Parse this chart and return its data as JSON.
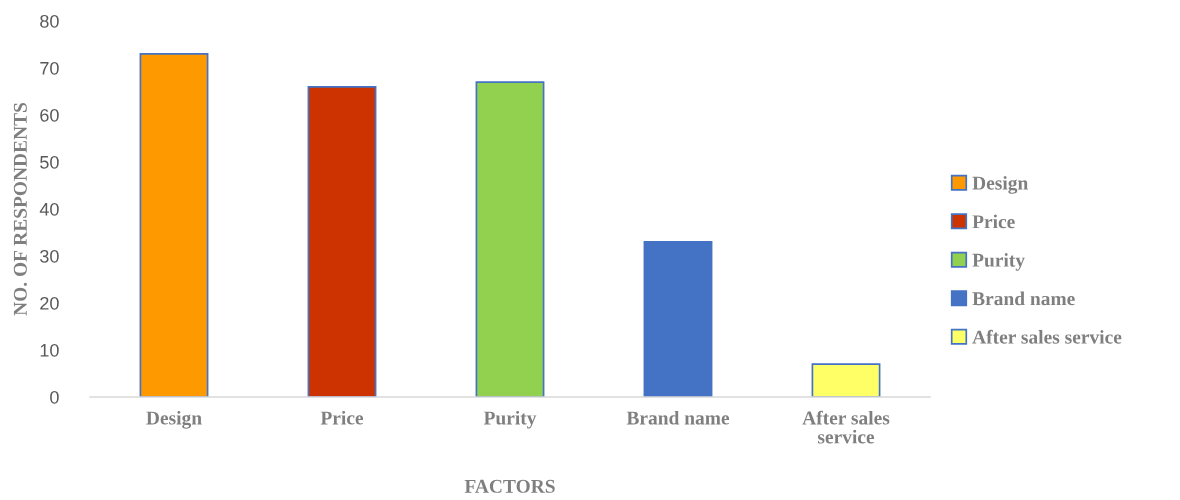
{
  "chart_data": {
    "type": "bar",
    "categories": [
      "Design",
      "Price",
      "Purity",
      "Brand name",
      "After sales service"
    ],
    "stacked": true,
    "series": [
      {
        "name": "Design",
        "color": "#ff9900",
        "values": [
          73,
          null,
          null,
          null,
          null
        ]
      },
      {
        "name": "Price",
        "color": "#cc3300",
        "values": [
          null,
          66,
          null,
          null,
          null
        ]
      },
      {
        "name": "Purity",
        "color": "#92d050",
        "values": [
          null,
          null,
          67,
          null,
          null
        ]
      },
      {
        "name": "Brand name",
        "color": "#4472c4",
        "values": [
          null,
          null,
          null,
          33,
          null
        ]
      },
      {
        "name": "After sales service",
        "color": "#ffff66",
        "values": [
          null,
          null,
          null,
          null,
          7
        ]
      }
    ],
    "xlabel": "FACTORS",
    "ylabel": "NO. OF RESPONDENTS",
    "ylim": [
      0,
      80
    ],
    "yticks": [
      0,
      10,
      20,
      30,
      40,
      50,
      60,
      70,
      80
    ],
    "grid": false,
    "legend": "right"
  }
}
